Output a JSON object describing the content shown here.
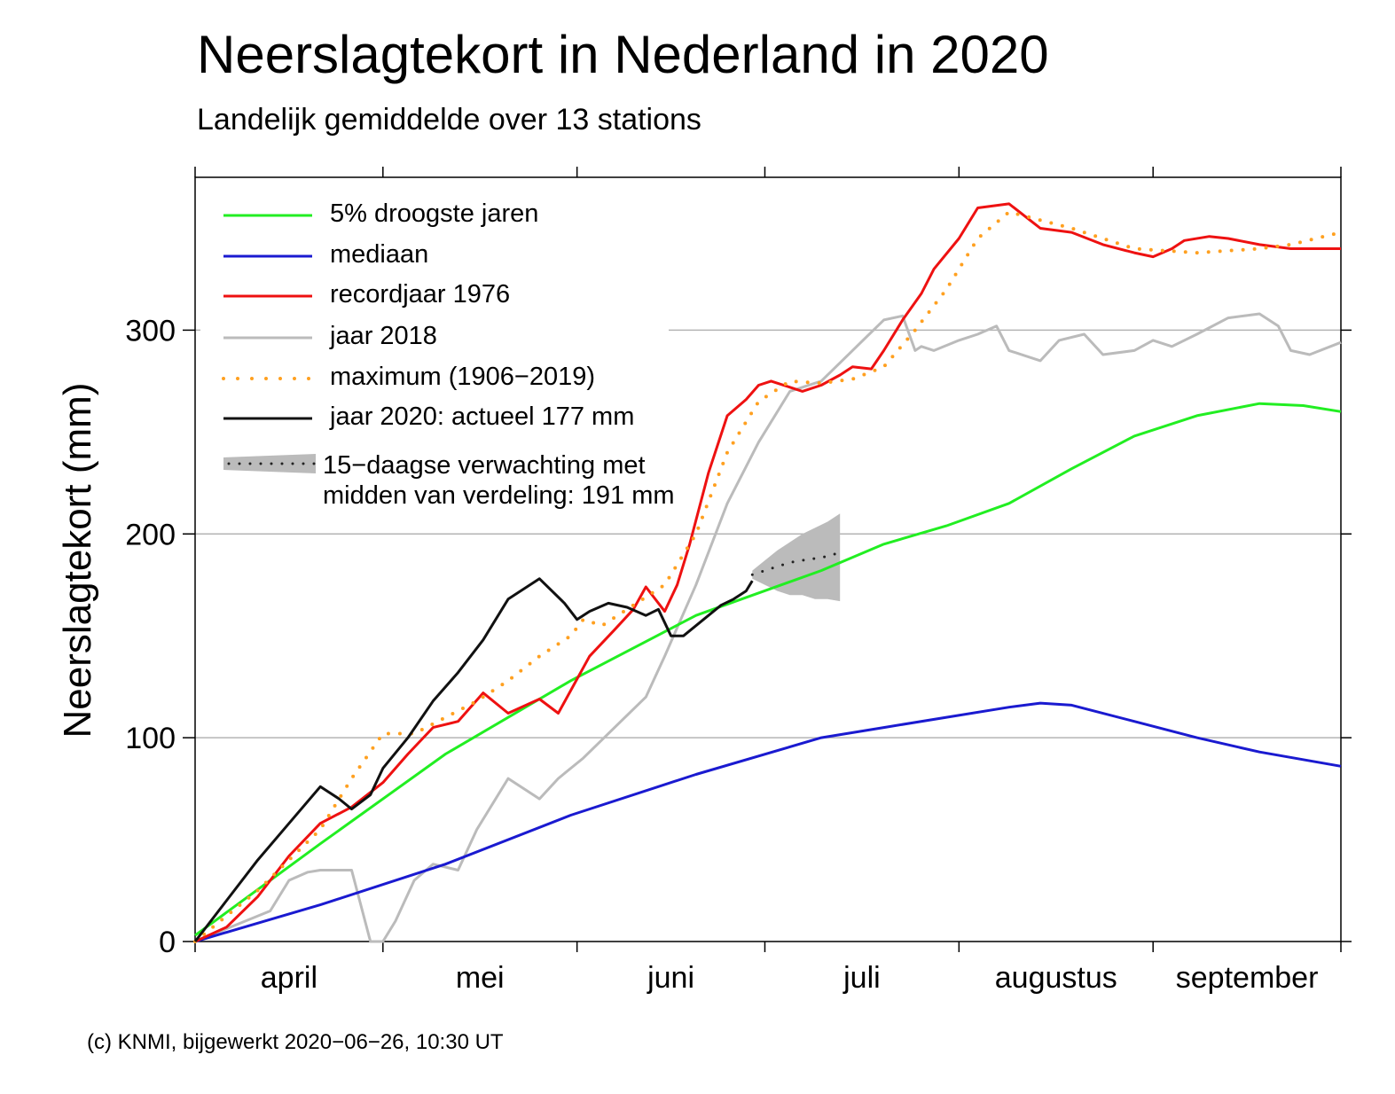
{
  "page": {
    "title": "Neerslagtekort in Nederland in 2020",
    "subtitle": "Landelijk gemiddelde over 13 stations",
    "footer": "(c) KNMI, bijgewerkt 2020−06−26, 10:30 UT"
  },
  "chart_data": {
    "type": "line",
    "title": "Neerslagtekort in Nederland in 2020",
    "subtitle": "Landelijk gemiddelde over 13 stations",
    "xlabel": "",
    "ylabel": "Neerslagtekort (mm)",
    "x_unit": "dagen vanaf 1 april",
    "xlim": [
      0,
      183
    ],
    "ylim": [
      0,
      375
    ],
    "y_ticks": [
      0,
      100,
      200,
      300
    ],
    "x_month_boundaries": [
      0,
      30,
      61,
      91,
      122,
      153,
      183
    ],
    "x_month_labels": [
      {
        "label": "april",
        "x": 15
      },
      {
        "label": "mei",
        "x": 45.5
      },
      {
        "label": "juni",
        "x": 76
      },
      {
        "label": "juli",
        "x": 106.5
      },
      {
        "label": "augustus",
        "x": 137.5
      },
      {
        "label": "september",
        "x": 168
      }
    ],
    "grid": "horizontal",
    "legend_position": "top-left",
    "series": [
      {
        "name": "5% droogste jaren",
        "color": "#22ee22",
        "style": "solid",
        "x": [
          0,
          20,
          40,
          60,
          80,
          100,
          110,
          120,
          130,
          140,
          150,
          160,
          170,
          177,
          183
        ],
        "y": [
          3,
          48,
          92,
          128,
          160,
          182,
          195,
          204,
          215,
          232,
          248,
          258,
          264,
          263,
          260
        ]
      },
      {
        "name": "mediaan",
        "color": "#1a1ad0",
        "style": "solid",
        "x": [
          0,
          20,
          40,
          60,
          80,
          100,
          110,
          120,
          130,
          135,
          140,
          150,
          160,
          170,
          183
        ],
        "y": [
          0,
          18,
          38,
          62,
          82,
          100,
          105,
          110,
          115,
          117,
          116,
          108,
          100,
          93,
          86
        ]
      },
      {
        "name": "recordjaar 1976",
        "color": "#ee1111",
        "style": "solid",
        "x": [
          0,
          5,
          10,
          15,
          20,
          25,
          30,
          34,
          38,
          42,
          46,
          50,
          55,
          58,
          63,
          67,
          70,
          72,
          75,
          77,
          79,
          82,
          85,
          88,
          90,
          92,
          95,
          97,
          100,
          103,
          105,
          108,
          110,
          113,
          116,
          118,
          122,
          125,
          130,
          135,
          140,
          145,
          150,
          153,
          156,
          158,
          162,
          165,
          170,
          175,
          183
        ],
        "y": [
          0,
          7,
          22,
          42,
          58,
          66,
          78,
          92,
          105,
          108,
          122,
          112,
          119,
          112,
          140,
          153,
          163,
          174,
          162,
          175,
          195,
          230,
          258,
          266,
          273,
          275,
          272,
          270,
          273,
          278,
          282,
          281,
          290,
          305,
          318,
          330,
          345,
          360,
          362,
          350,
          348,
          342,
          338,
          336,
          340,
          344,
          346,
          345,
          342,
          340,
          340
        ]
      },
      {
        "name": "jaar 2018",
        "color": "#bbbbbb",
        "style": "solid",
        "x": [
          0,
          8,
          12,
          15,
          18,
          20,
          25,
          28,
          30,
          32,
          35,
          38,
          42,
          45,
          50,
          55,
          58,
          62,
          68,
          72,
          75,
          80,
          85,
          90,
          95,
          100,
          105,
          110,
          113,
          115,
          116,
          118,
          122,
          125,
          128,
          130,
          135,
          138,
          142,
          145,
          150,
          153,
          156,
          160,
          165,
          170,
          173,
          175,
          178,
          183
        ],
        "y": [
          0,
          10,
          15,
          30,
          34,
          35,
          35,
          0,
          0,
          10,
          30,
          38,
          35,
          55,
          80,
          70,
          80,
          90,
          108,
          120,
          140,
          175,
          215,
          245,
          270,
          275,
          290,
          305,
          307,
          290,
          292,
          290,
          295,
          298,
          302,
          290,
          285,
          295,
          298,
          288,
          290,
          295,
          292,
          298,
          306,
          308,
          302,
          290,
          288,
          294
        ]
      },
      {
        "name": "maximum (1906−2019)",
        "color": "#ffa020",
        "style": "dotted",
        "x": [
          0,
          10,
          20,
          25,
          30,
          35,
          40,
          45,
          50,
          55,
          60,
          62,
          65,
          70,
          75,
          80,
          85,
          90,
          95,
          100,
          105,
          110,
          115,
          120,
          125,
          130,
          140,
          150,
          160,
          170,
          175,
          183
        ],
        "y": [
          0,
          25,
          55,
          80,
          102,
          102,
          110,
          118,
          128,
          140,
          150,
          158,
          155,
          165,
          175,
          200,
          240,
          265,
          275,
          274,
          276,
          282,
          300,
          320,
          345,
          358,
          350,
          340,
          338,
          340,
          342,
          348
        ]
      },
      {
        "name": "jaar 2020: actueel 177 mm",
        "color": "#111111",
        "style": "solid",
        "x": [
          0,
          5,
          10,
          15,
          20,
          23,
          25,
          28,
          30,
          34,
          38,
          42,
          46,
          50,
          55,
          59,
          61,
          63,
          66,
          69,
          72,
          74,
          76,
          78,
          80,
          82,
          84,
          86,
          88,
          89
        ],
        "y": [
          0,
          20,
          40,
          58,
          76,
          70,
          65,
          72,
          85,
          100,
          118,
          132,
          148,
          168,
          178,
          166,
          158,
          162,
          166,
          164,
          160,
          163,
          150,
          150,
          155,
          160,
          165,
          168,
          172,
          177
        ]
      }
    ],
    "forecast": {
      "name": "15−daagse verwachting met midden van verdeling: 191 mm",
      "color": "#888888",
      "band_color": "#bbbbbb",
      "x": [
        89,
        91,
        93,
        95,
        97,
        99,
        101,
        103
      ],
      "median": [
        180,
        182,
        184,
        186,
        187,
        188,
        189,
        191
      ],
      "low": [
        178,
        175,
        172,
        170,
        170,
        168,
        168,
        167
      ],
      "high": [
        182,
        187,
        192,
        196,
        200,
        203,
        206,
        210
      ]
    }
  },
  "legend": [
    {
      "label": "5% droogste jaren",
      "color": "#22ee22",
      "style": "solid"
    },
    {
      "label": "mediaan",
      "color": "#1a1ad0",
      "style": "solid"
    },
    {
      "label": "recordjaar 1976",
      "color": "#ee1111",
      "style": "solid"
    },
    {
      "label": "jaar 2018",
      "color": "#bbbbbb",
      "style": "solid"
    },
    {
      "label": "maximum (1906−2019)",
      "color": "#ffa020",
      "style": "dotted"
    },
    {
      "label": "jaar 2020: actueel 177 mm",
      "color": "#111111",
      "style": "solid"
    },
    {
      "label": "15−daagse verwachting met",
      "label2": "midden van verdeling: 191 mm",
      "color": "#bbbbbb",
      "style": "band"
    }
  ]
}
